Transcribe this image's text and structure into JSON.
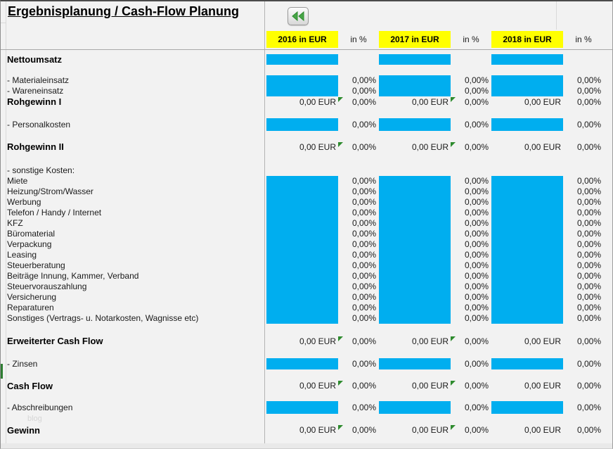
{
  "title": "Ergebnisplanung / Cash-Flow Planung",
  "back_button": {
    "icon": "rewind-icon"
  },
  "watermark": "blog",
  "colors": {
    "input_cell": "#00aeef",
    "header_bg": "#ffff00",
    "marker": "#2e8b2e",
    "background": "#f2f2f2",
    "edge_mark": "#2e7d32"
  },
  "header": {
    "years": [
      "2016",
      "2017",
      "2018"
    ],
    "percent_label": "in %",
    "cells": [
      "2016 in EUR",
      "in %",
      "2017 in EUR",
      "in %",
      "2018 in EUR",
      "in %"
    ]
  },
  "values": {
    "eur_zero": "0,00 EUR",
    "pct_zero": "0,00%"
  },
  "marker_columns": [
    0,
    1
  ],
  "rows": [
    {
      "type": "spacer",
      "h": 7
    },
    {
      "type": "input",
      "h": 15,
      "label": "Nettoumsatz",
      "bold": true,
      "pct": false
    },
    {
      "type": "spacer",
      "h": 15
    },
    {
      "type": "input",
      "h": 15,
      "label": "- Materialeinsatz",
      "pct": true
    },
    {
      "type": "input",
      "h": 15,
      "label": "- Wareneinsatz",
      "pct": true
    },
    {
      "type": "formula",
      "h": 16,
      "label": "Rohgewinn I",
      "bold": true
    },
    {
      "type": "spacer",
      "h": 15
    },
    {
      "type": "input",
      "h": 18,
      "label": "- Personalkosten",
      "pct": true
    },
    {
      "type": "spacer",
      "h": 15
    },
    {
      "type": "formula",
      "h": 16,
      "label": "Rohgewinn II",
      "bold": true
    },
    {
      "type": "spacer",
      "h": 18
    },
    {
      "type": "label",
      "h": 15,
      "label": "- sonstige Kosten:"
    },
    {
      "type": "input",
      "h": 15,
      "label": "Miete",
      "pct": true
    },
    {
      "type": "input",
      "h": 15,
      "label": "Heizung/Strom/Wasser",
      "pct": true
    },
    {
      "type": "input",
      "h": 15,
      "label": "Werbung",
      "pct": true
    },
    {
      "type": "input",
      "h": 15,
      "label": "Telefon / Handy / Internet",
      "pct": true
    },
    {
      "type": "input",
      "h": 15,
      "label": "KFZ",
      "pct": true
    },
    {
      "type": "input",
      "h": 15,
      "label": "Büromaterial",
      "pct": true
    },
    {
      "type": "input",
      "h": 15,
      "label": "Verpackung",
      "pct": true
    },
    {
      "type": "input",
      "h": 15,
      "label": "Leasing",
      "pct": true
    },
    {
      "type": "input",
      "h": 15,
      "label": "Steuerberatung",
      "pct": true
    },
    {
      "type": "input",
      "h": 15,
      "label": "Beiträge Innung, Kammer, Verband",
      "pct": true
    },
    {
      "type": "input",
      "h": 15,
      "label": "Steuervorauszahlung",
      "pct": true
    },
    {
      "type": "input",
      "h": 15,
      "label": "Versicherung",
      "pct": true
    },
    {
      "type": "input",
      "h": 15,
      "label": "Reparaturen",
      "pct": true
    },
    {
      "type": "input",
      "h": 15,
      "label": "Sonstiges (Vertrags- u. Notarkosten, Wagnisse etc)",
      "pct": true
    },
    {
      "type": "spacer",
      "h": 17
    },
    {
      "type": "formula",
      "h": 16,
      "label": "Erweiterter Cash Flow",
      "bold": true
    },
    {
      "type": "spacer",
      "h": 16
    },
    {
      "type": "input",
      "h": 16,
      "label": "- Zinsen",
      "pct": true
    },
    {
      "type": "spacer",
      "h": 15
    },
    {
      "type": "formula",
      "h": 17,
      "label": "Cash Flow",
      "bold": true
    },
    {
      "type": "spacer",
      "h": 13
    },
    {
      "type": "input",
      "h": 18,
      "label": "- Abschreibungen",
      "pct": true
    },
    {
      "type": "spacer",
      "h": 15
    },
    {
      "type": "formula",
      "h": 17,
      "label": "Gewinn",
      "bold": true
    },
    {
      "type": "spacer",
      "h": 10
    }
  ]
}
